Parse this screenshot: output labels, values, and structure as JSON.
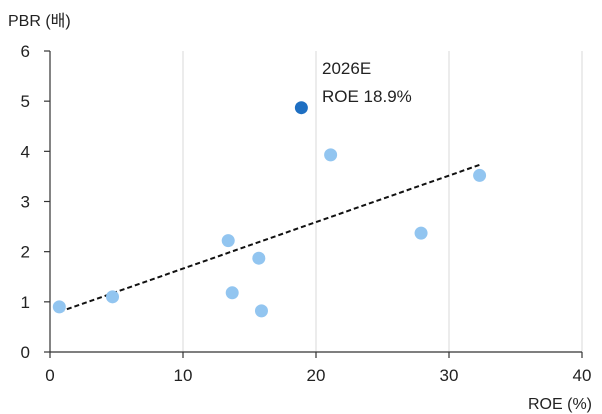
{
  "chart_data": {
    "type": "scatter",
    "title": "",
    "xlabel": "ROE (%)",
    "ylabel": "PBR (배)",
    "xlim": [
      0,
      40
    ],
    "ylim": [
      0,
      6
    ],
    "xticks": [
      0,
      10,
      20,
      30,
      40
    ],
    "yticks": [
      0,
      1,
      2,
      3,
      4,
      5,
      6
    ],
    "grid": "vertical",
    "point_color": "#92C5F0",
    "highlight_color": "#1E6FC2",
    "points": [
      {
        "x": 0.7,
        "y": 0.9
      },
      {
        "x": 4.7,
        "y": 1.1
      },
      {
        "x": 13.4,
        "y": 2.22
      },
      {
        "x": 13.7,
        "y": 1.18
      },
      {
        "x": 15.7,
        "y": 1.87
      },
      {
        "x": 15.9,
        "y": 0.82
      },
      {
        "x": 21.1,
        "y": 3.93
      },
      {
        "x": 27.9,
        "y": 2.37
      },
      {
        "x": 32.3,
        "y": 3.52
      }
    ],
    "highlight": {
      "x": 18.9,
      "y": 4.87,
      "label_line1": "2026E",
      "label_line2": "ROE 18.9%"
    },
    "trendline": {
      "x0": 0.7,
      "y0": 0.8,
      "x1": 32.3,
      "y1": 3.73,
      "style": "dashed"
    }
  }
}
